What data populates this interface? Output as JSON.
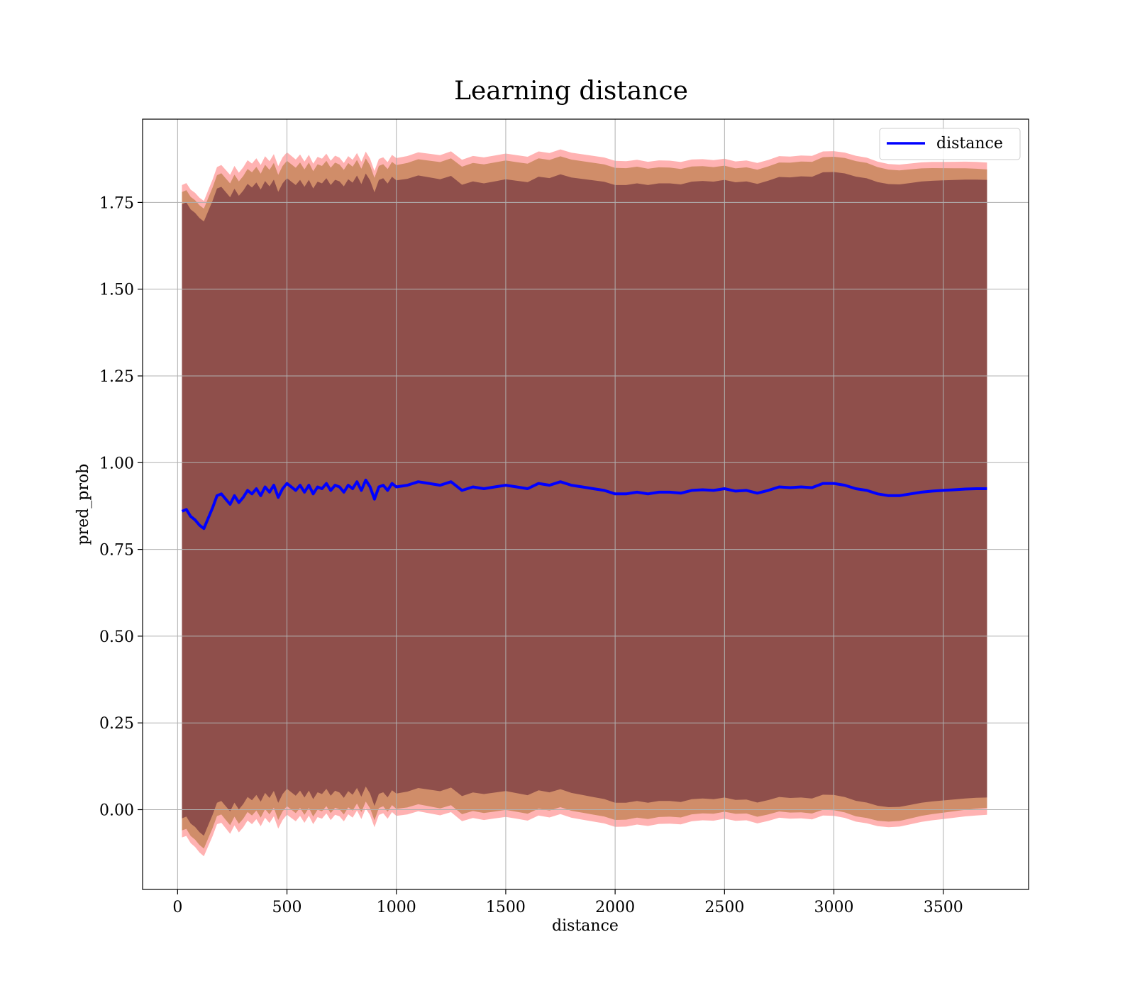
{
  "chart_data": {
    "type": "line",
    "title": "Learning distance",
    "xlabel": "distance",
    "ylabel": "pred_prob",
    "xlim": [
      -160,
      3890
    ],
    "ylim": [
      -0.23,
      1.99
    ],
    "xticks": [
      0,
      500,
      1000,
      1500,
      2000,
      2500,
      3000,
      3500
    ],
    "yticks": [
      0.0,
      0.25,
      0.5,
      0.75,
      1.0,
      1.25,
      1.5,
      1.75
    ],
    "xtick_labels": [
      "0",
      "500",
      "1000",
      "1500",
      "2000",
      "2500",
      "3000",
      "3500"
    ],
    "ytick_labels": [
      "0.00",
      "0.25",
      "0.50",
      "0.75",
      "1.00",
      "1.25",
      "1.50",
      "1.75"
    ],
    "grid": true,
    "legend": {
      "position": "top-right",
      "entries": [
        "distance"
      ]
    },
    "colors": {
      "line": "#0000ff",
      "outer_band": "#ff0000",
      "middle_band": "#c08050",
      "inner_band": "#5a1d33",
      "grid": "#b0b0b0"
    },
    "series": [
      {
        "name": "distance",
        "x": [
          20,
          40,
          60,
          80,
          100,
          120,
          140,
          160,
          180,
          200,
          220,
          240,
          260,
          280,
          300,
          320,
          340,
          360,
          380,
          400,
          420,
          440,
          460,
          480,
          500,
          520,
          540,
          560,
          580,
          600,
          620,
          640,
          660,
          680,
          700,
          720,
          740,
          760,
          780,
          800,
          820,
          840,
          860,
          880,
          900,
          920,
          940,
          960,
          980,
          1000,
          1050,
          1100,
          1150,
          1200,
          1250,
          1300,
          1350,
          1400,
          1450,
          1500,
          1550,
          1600,
          1650,
          1700,
          1750,
          1800,
          1850,
          1900,
          1950,
          2000,
          2050,
          2100,
          2150,
          2200,
          2250,
          2300,
          2350,
          2400,
          2450,
          2500,
          2550,
          2600,
          2650,
          2700,
          2750,
          2800,
          2850,
          2900,
          2950,
          3000,
          3050,
          3100,
          3150,
          3200,
          3250,
          3300,
          3350,
          3400,
          3450,
          3500,
          3550,
          3600,
          3650,
          3700
        ],
        "y": [
          0.86,
          0.865,
          0.845,
          0.835,
          0.82,
          0.81,
          0.84,
          0.87,
          0.905,
          0.91,
          0.895,
          0.88,
          0.905,
          0.885,
          0.9,
          0.92,
          0.91,
          0.925,
          0.905,
          0.93,
          0.915,
          0.935,
          0.9,
          0.925,
          0.94,
          0.93,
          0.92,
          0.935,
          0.915,
          0.935,
          0.91,
          0.93,
          0.925,
          0.94,
          0.92,
          0.935,
          0.93,
          0.915,
          0.935,
          0.925,
          0.945,
          0.92,
          0.95,
          0.93,
          0.895,
          0.93,
          0.935,
          0.92,
          0.94,
          0.93,
          0.935,
          0.945,
          0.94,
          0.935,
          0.945,
          0.92,
          0.93,
          0.925,
          0.93,
          0.935,
          0.93,
          0.925,
          0.94,
          0.935,
          0.945,
          0.935,
          0.93,
          0.925,
          0.92,
          0.91,
          0.91,
          0.915,
          0.91,
          0.915,
          0.915,
          0.912,
          0.92,
          0.922,
          0.92,
          0.925,
          0.918,
          0.92,
          0.912,
          0.92,
          0.93,
          0.928,
          0.93,
          0.928,
          0.94,
          0.94,
          0.935,
          0.925,
          0.92,
          0.91,
          0.905,
          0.905,
          0.91,
          0.915,
          0.918,
          0.92,
          0.922,
          0.924,
          0.925,
          0.925
        ],
        "band_inner": [
          0.885,
          0.885,
          0.88,
          0.88,
          0.885,
          0.88,
          0.89,
          0.89,
          0.9,
          0.89
        ],
        "band_middle": [
          0.92,
          0.925,
          0.93,
          0.93,
          0.925,
          0.935,
          0.94,
          0.93,
          0.945,
          0.92
        ],
        "band_outer": [
          0.94,
          0.95,
          0.955,
          0.95,
          0.945,
          0.955,
          0.96,
          0.95,
          0.96,
          0.94
        ]
      }
    ]
  }
}
